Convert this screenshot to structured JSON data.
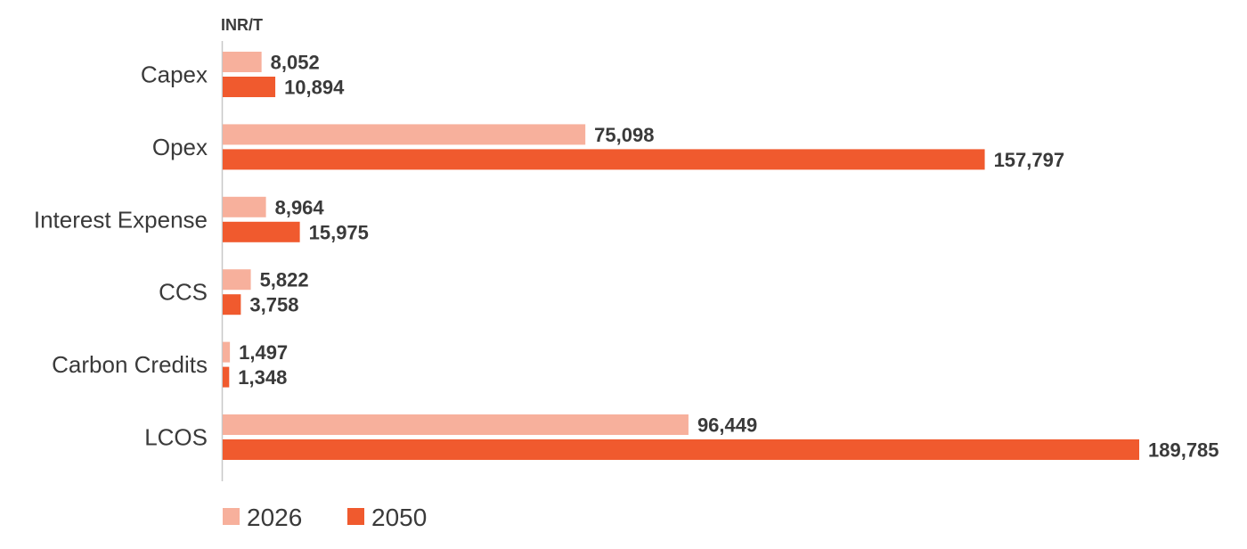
{
  "chart_data": {
    "type": "bar",
    "orientation": "horizontal",
    "unit_label": "INR/T",
    "categories": [
      "Capex",
      "Opex",
      "Interest Expense",
      "CCS",
      "Carbon Credits",
      "LCOS"
    ],
    "series": [
      {
        "name": "2026",
        "color": "#f7b09c",
        "values": [
          8052,
          75098,
          8964,
          5822,
          1497,
          96449
        ],
        "labels": [
          "8,052",
          "75,098",
          "8,964",
          "5,822",
          "1,497",
          "96,449"
        ]
      },
      {
        "name": "2050",
        "color": "#f05a2e",
        "values": [
          10894,
          157797,
          15975,
          3758,
          1348,
          189785
        ],
        "labels": [
          "10,894",
          "157,797",
          "15,975",
          "3,758",
          "1,348",
          "189,785"
        ]
      }
    ],
    "xlim": [
      0,
      189785
    ],
    "grid": false,
    "legend_position": "bottom-left"
  }
}
